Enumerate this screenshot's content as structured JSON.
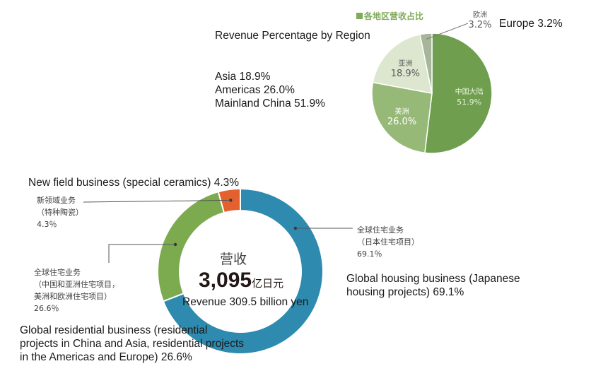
{
  "chart_data": [
    {
      "type": "pie",
      "title": "Revenue Percentage by Region",
      "title_zh": "各地区营收占比",
      "series": [
        {
          "label_zh": "中国大陆",
          "label_en": "Mainland China",
          "value": 51.9,
          "value_label": "51.9%",
          "color": "#6f9e4f",
          "text_color": "#e8f3d8"
        },
        {
          "label_zh": "美洲",
          "label_en": "Americas",
          "value": 26.0,
          "value_label": "26.0%",
          "color": "#97b978",
          "text_color": "#ffffff"
        },
        {
          "label_zh": "亚洲",
          "label_en": "Asia",
          "value": 18.9,
          "value_label": "18.9%",
          "color": "#dde7cf",
          "text_color": "#5a5a5a"
        },
        {
          "label_zh": "欧洲",
          "label_en": "Europe",
          "value": 3.2,
          "value_label": "3.2%",
          "color": "#a7b59a",
          "text_color": "#5a5a5a"
        }
      ],
      "legend_lines": [
        "Asia 18.9%",
        "Americas 26.0%",
        "Mainland China 51.9%"
      ],
      "europe_note": "Europe 3.2%"
    },
    {
      "type": "pie",
      "variant": "donut",
      "center_zh": "营收",
      "center_value": "3,095",
      "center_unit": "亿日元",
      "center_en": "Revenue 309.5 billion yen",
      "series": [
        {
          "value": 69.1,
          "color": "#2e8aae",
          "label_zh": "全球住宅业务\n（日本住宅项目）\n69.1％",
          "label_en": "Global housing business (Japanese\nhousing projects) 69.1%"
        },
        {
          "value": 26.6,
          "color": "#7cab4f",
          "label_zh": "全球住宅业务\n（中国和亚洲住宅项目，\n美洲和欧洲住宅项目）\n26.6％",
          "label_en": "Global residential business (residential\nprojects in China and Asia, residential projects\nin the Americas and Europe) 26.6%"
        },
        {
          "value": 4.3,
          "color": "#e2612e",
          "label_zh": "新领域业务\n（特种陶瓷）\n4.3％",
          "label_en": "New field business (special ceramics) 4.3%"
        }
      ]
    }
  ]
}
